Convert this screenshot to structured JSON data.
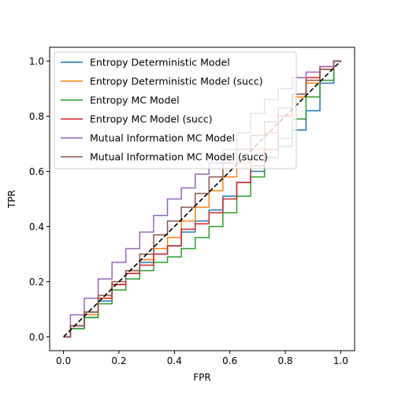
{
  "chart_data": {
    "type": "line",
    "title": "",
    "xlabel": "FPR",
    "ylabel": "TPR",
    "xlim": [
      -0.05,
      1.05
    ],
    "ylim": [
      -0.05,
      1.05
    ],
    "xticks": [
      "0.0",
      "0.2",
      "0.4",
      "0.6",
      "0.8",
      "1.0"
    ],
    "yticks": [
      "0.0",
      "0.2",
      "0.4",
      "0.6",
      "0.8",
      "1.0"
    ],
    "grid": false,
    "legend_position": "top-left",
    "diagonal": {
      "x": [
        0,
        1
      ],
      "y": [
        0,
        1
      ],
      "color": "#000000",
      "style": "dashed"
    },
    "series": [
      {
        "name": "Entropy Deterministic Model",
        "color": "#1f77b4",
        "x": [
          0.0,
          0.05,
          0.1,
          0.15,
          0.2,
          0.25,
          0.3,
          0.35,
          0.4,
          0.45,
          0.5,
          0.55,
          0.6,
          0.65,
          0.7,
          0.75,
          0.8,
          0.85,
          0.9,
          0.95,
          1.0
        ],
        "y": [
          0.0,
          0.03,
          0.07,
          0.13,
          0.19,
          0.23,
          0.27,
          0.3,
          0.33,
          0.38,
          0.42,
          0.46,
          0.51,
          0.56,
          0.6,
          0.65,
          0.69,
          0.75,
          0.82,
          0.92,
          1.0
        ]
      },
      {
        "name": "Entropy Deterministic Model (succ)",
        "color": "#ff7f0e",
        "x": [
          0.0,
          0.05,
          0.1,
          0.15,
          0.2,
          0.25,
          0.3,
          0.35,
          0.4,
          0.45,
          0.5,
          0.55,
          0.6,
          0.65,
          0.7,
          0.75,
          0.8,
          0.85,
          0.9,
          0.95,
          1.0
        ],
        "y": [
          0.0,
          0.04,
          0.08,
          0.14,
          0.19,
          0.24,
          0.28,
          0.32,
          0.36,
          0.42,
          0.47,
          0.53,
          0.58,
          0.63,
          0.68,
          0.74,
          0.8,
          0.87,
          0.92,
          0.97,
          1.0
        ]
      },
      {
        "name": "Entropy MC Model",
        "color": "#2ca02c",
        "x": [
          0.0,
          0.05,
          0.1,
          0.15,
          0.2,
          0.25,
          0.3,
          0.35,
          0.4,
          0.45,
          0.5,
          0.55,
          0.6,
          0.65,
          0.7,
          0.75,
          0.8,
          0.85,
          0.9,
          0.95,
          1.0
        ],
        "y": [
          0.0,
          0.03,
          0.07,
          0.12,
          0.17,
          0.21,
          0.24,
          0.27,
          0.29,
          0.32,
          0.36,
          0.4,
          0.45,
          0.51,
          0.58,
          0.65,
          0.72,
          0.79,
          0.87,
          0.93,
          1.0
        ]
      },
      {
        "name": "Entropy MC Model (succ)",
        "color": "#d62728",
        "x": [
          0.0,
          0.05,
          0.1,
          0.15,
          0.2,
          0.25,
          0.3,
          0.35,
          0.4,
          0.45,
          0.5,
          0.55,
          0.6,
          0.65,
          0.7,
          0.75,
          0.8,
          0.85,
          0.9,
          0.95,
          1.0
        ],
        "y": [
          0.0,
          0.04,
          0.09,
          0.14,
          0.19,
          0.23,
          0.26,
          0.3,
          0.33,
          0.39,
          0.41,
          0.45,
          0.5,
          0.56,
          0.62,
          0.68,
          0.8,
          0.88,
          0.94,
          0.98,
          1.0
        ]
      },
      {
        "name": "Mutual Information MC Model",
        "color": "#9467bd",
        "x": [
          0.0,
          0.05,
          0.1,
          0.15,
          0.2,
          0.25,
          0.3,
          0.35,
          0.4,
          0.45,
          0.5,
          0.55,
          0.6,
          0.65,
          0.7,
          0.75,
          0.8,
          0.85,
          0.9,
          0.95,
          1.0
        ],
        "y": [
          0.0,
          0.08,
          0.14,
          0.21,
          0.27,
          0.32,
          0.38,
          0.44,
          0.5,
          0.54,
          0.59,
          0.63,
          0.68,
          0.74,
          0.81,
          0.86,
          0.9,
          0.94,
          0.96,
          0.98,
          1.0
        ]
      },
      {
        "name": "Mutual Information MC Model (succ)",
        "color": "#8c564b",
        "x": [
          0.0,
          0.05,
          0.1,
          0.15,
          0.2,
          0.25,
          0.3,
          0.35,
          0.4,
          0.45,
          0.5,
          0.55,
          0.6,
          0.65,
          0.7,
          0.75,
          0.8,
          0.85,
          0.9,
          0.95,
          1.0
        ],
        "y": [
          0.0,
          0.04,
          0.09,
          0.15,
          0.2,
          0.24,
          0.3,
          0.37,
          0.42,
          0.47,
          0.52,
          0.58,
          0.63,
          0.68,
          0.73,
          0.78,
          0.83,
          0.88,
          0.93,
          0.97,
          1.0
        ]
      }
    ]
  }
}
